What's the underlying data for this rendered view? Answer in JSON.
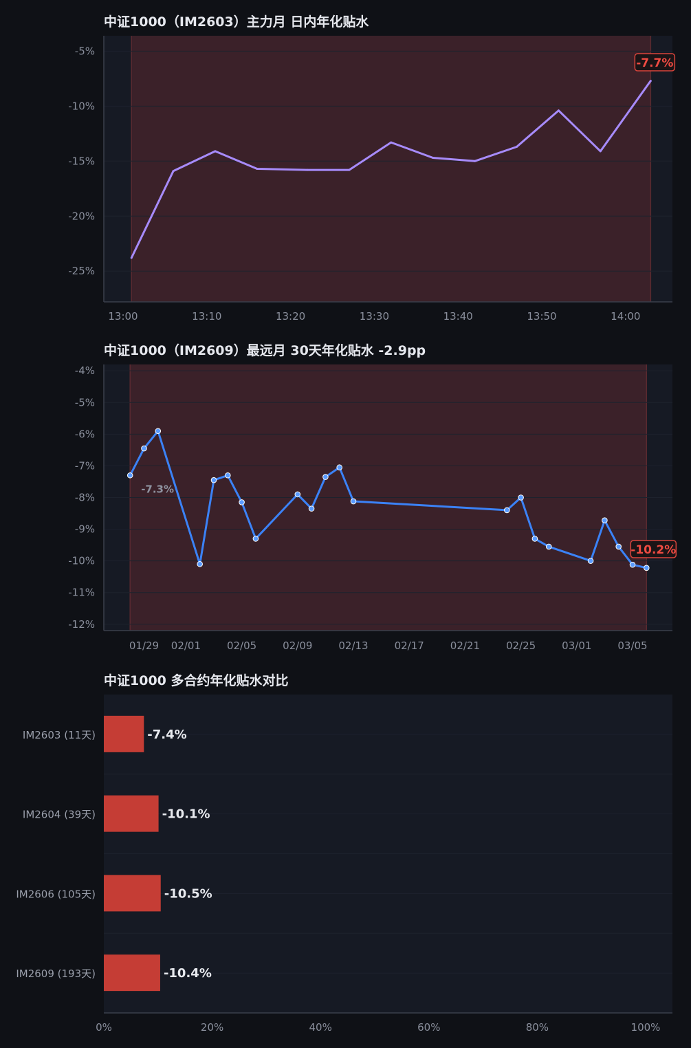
{
  "charts": {
    "intraday": {
      "title": "中证1000（IM2603）主力月 日内年化贴水",
      "last_label": "-7.7%"
    },
    "thirty_day": {
      "title": "中证1000（IM2609）最远月 30天年化贴水   -2.9pp",
      "first_label": "-7.3%",
      "last_label": "-10.2%"
    },
    "contracts": {
      "title": "中证1000 多合约年化贴水对比"
    }
  },
  "chart_data": [
    {
      "type": "line",
      "title": "中证1000（IM2603）主力月 日内年化贴水",
      "xlabel": "",
      "ylabel": "",
      "x": [
        "13:01",
        "13:06",
        "13:11",
        "13:16",
        "13:22",
        "13:27",
        "13:32",
        "13:37",
        "13:42",
        "13:47",
        "13:52",
        "13:57",
        "14:03"
      ],
      "y": [
        -23.8,
        -15.9,
        -14.1,
        -15.7,
        -15.8,
        -15.8,
        -13.3,
        -14.7,
        -15.0,
        -13.7,
        -10.4,
        -14.1,
        -7.7
      ],
      "x_ticks": [
        "13:00",
        "13:10",
        "13:20",
        "13:30",
        "13:40",
        "13:50",
        "14:00"
      ],
      "y_ticks": [
        "-5%",
        "-10%",
        "-15%",
        "-20%",
        "-25%"
      ],
      "ylim": [
        -27.8,
        -3.6
      ],
      "color": "#a78bfa",
      "shaded_band": {
        "color": "#7a2e33",
        "from": "13:01",
        "to": "14:03"
      },
      "end_label": "-7.7%"
    },
    {
      "type": "line",
      "title": "中证1000（IM2609）最远月 30天年化贴水   -2.9pp",
      "xlabel": "",
      "ylabel": "",
      "x": [
        "01/28",
        "01/29",
        "01/30",
        "02/02",
        "02/03",
        "02/04",
        "02/05",
        "02/06",
        "02/09",
        "02/10",
        "02/11",
        "02/12",
        "02/13",
        "02/24",
        "02/25",
        "02/26",
        "02/27",
        "03/02",
        "03/03",
        "03/04",
        "03/05",
        "03/06"
      ],
      "y": [
        -7.3,
        -6.45,
        -5.9,
        -10.1,
        -7.45,
        -7.3,
        -8.15,
        -9.3,
        -7.9,
        -8.35,
        -7.35,
        -7.05,
        -8.12,
        -8.4,
        -8.0,
        -9.3,
        -9.55,
        -10.0,
        -8.72,
        -9.55,
        -10.12,
        -10.22
      ],
      "x_ticks": [
        "01/29",
        "02/01",
        "02/05",
        "02/09",
        "02/13",
        "02/17",
        "02/21",
        "02/25",
        "03/01",
        "03/05"
      ],
      "y_ticks": [
        "-4%",
        "-5%",
        "-6%",
        "-7%",
        "-8%",
        "-9%",
        "-10%",
        "-11%",
        "-12%"
      ],
      "ylim": [
        -12.2,
        -3.8
      ],
      "color": "#3b82f6",
      "shaded_band": {
        "color": "#7a2e33",
        "from": "01/28",
        "to": "03/06"
      },
      "start_label": "-7.3%",
      "end_label": "-10.2%"
    },
    {
      "type": "bar",
      "orientation": "horizontal",
      "title": "中证1000 多合约年化贴水对比",
      "categories": [
        "IM2603 (11天)",
        "IM2604 (39天)",
        "IM2606 (105天)",
        "IM2609 (193天)"
      ],
      "values": [
        -7.4,
        -10.1,
        -10.5,
        -10.4
      ],
      "value_labels": [
        "-7.4%",
        "-10.1%",
        "-10.5%",
        "-10.4%"
      ],
      "x_ticks": [
        "0%",
        "20%",
        "40%",
        "60%",
        "80%",
        "100%"
      ],
      "xlim": [
        0,
        100
      ],
      "color": "#c53d35",
      "grid": true
    }
  ]
}
